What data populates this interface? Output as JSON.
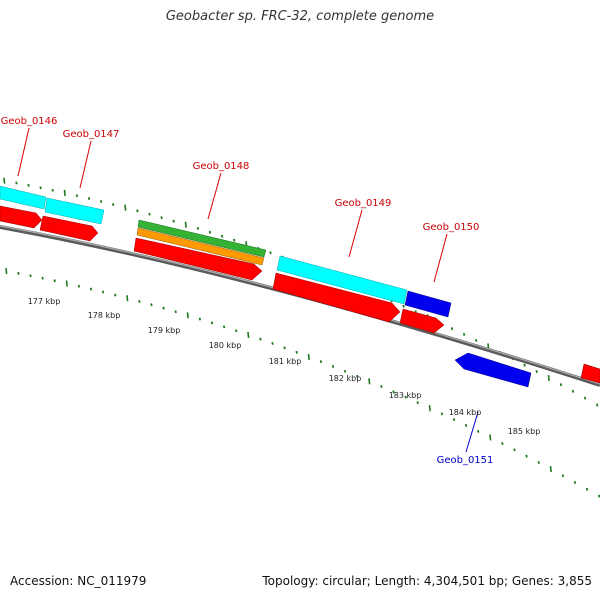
{
  "title": "Geobacter sp. FRC-32, complete genome",
  "accession": "Accession: NC_011979",
  "summary": "Topology: circular; Length: 4,304,501 bp; Genes: 3,855",
  "colors": {
    "cyan": "#00ffff",
    "red": "#ff0000",
    "green": "#33b233",
    "orange": "#ff9900",
    "blue": "#0000ee",
    "backbone": "#888888",
    "tick": "#228b22",
    "label_red": "#cc0000",
    "label_blue": "#0000cc"
  },
  "genes": [
    {
      "name": "Geob_0146"
    },
    {
      "name": "Geob_0147"
    },
    {
      "name": "Geob_0148"
    },
    {
      "name": "Geob_0149"
    },
    {
      "name": "Geob_0150"
    },
    {
      "name": "Geob_0151"
    }
  ],
  "scale_labels": [
    "177 kbp",
    "178 kbp",
    "179 kbp",
    "180 kbp",
    "181 kbp",
    "182 kbp",
    "183 kbp",
    "184 kbp",
    "185 kbp"
  ]
}
